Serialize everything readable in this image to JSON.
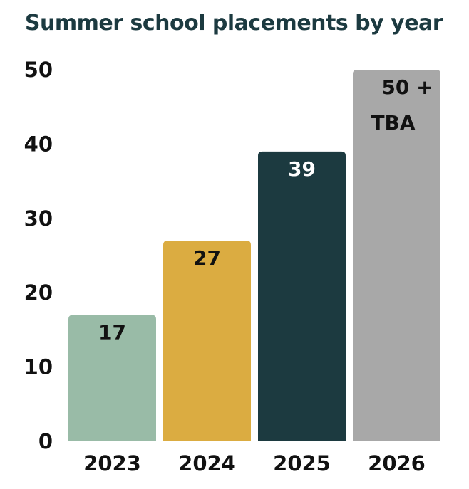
{
  "chart_data": {
    "type": "bar",
    "title": "Summer school placements by year",
    "xlabel": "",
    "ylabel": "",
    "categories": [
      "2023",
      "2024",
      "2025",
      "2026"
    ],
    "values": [
      17,
      27,
      39,
      50
    ],
    "data_labels": [
      [
        "17"
      ],
      [
        "27"
      ],
      [
        "39"
      ],
      [
        "50 +",
        "TBA"
      ]
    ],
    "yticks": [
      "0",
      "10",
      "20",
      "30",
      "40",
      "50"
    ],
    "ylim": [
      0,
      50
    ],
    "grid": false,
    "legend": "none",
    "colors": [
      "#99bba7",
      "#dbac41",
      "#1c3a40",
      "#a8a8a8"
    ],
    "label_colors": [
      "#111111",
      "#111111",
      "#ffffff",
      "#111111"
    ],
    "title_color": "#1c3a40",
    "axis_text_color": "#111111"
  }
}
